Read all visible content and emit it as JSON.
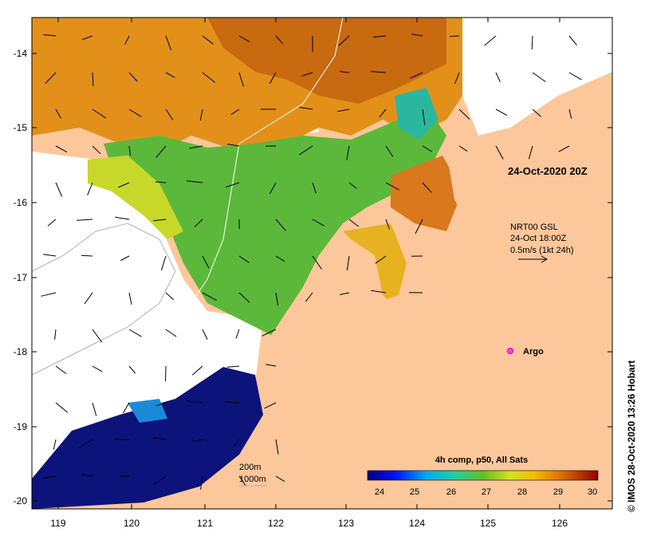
{
  "map": {
    "lon_ticks": [
      "119",
      "120",
      "121",
      "122",
      "123",
      "124",
      "125",
      "126"
    ],
    "lat_ticks": [
      "-14",
      "-15",
      "-16",
      "-17",
      "-18",
      "-19",
      "-20"
    ],
    "date_label": "24-Oct-2020 20Z",
    "legend_block": {
      "line1": "NRT00 GSL",
      "line2": "24-Oct 18:00Z",
      "line3": "0.5m/s (1kt 24h)"
    },
    "argo_label": "Argo",
    "depth_legend": {
      "line1": "200m",
      "line2": "1000m"
    },
    "colorbar": {
      "title": "4h comp, p50, All Sats",
      "ticks": [
        "24",
        "25",
        "26",
        "27",
        "28",
        "29",
        "30"
      ]
    },
    "credit": "© IMOS 28-Oct-2020 13:26 Hobart",
    "colors": {
      "land": "#fcc79b",
      "cloud": "#ffffff",
      "warm": "#cc6a0c",
      "cool": "#0c137a"
    }
  }
}
